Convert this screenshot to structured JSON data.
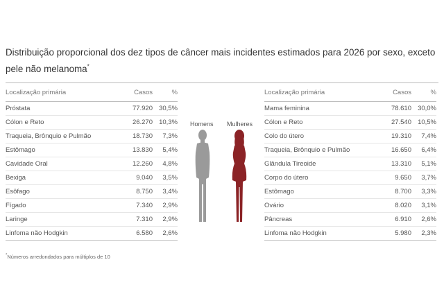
{
  "title": "Distribuição proporcional dos dez tipos de câncer mais incidentes estimados para 2026 por sexo, exceto pele não melanoma",
  "title_marker": "*",
  "headers": {
    "location": "Localização primária",
    "cases": "Casos",
    "pct": "%"
  },
  "figure_labels": {
    "men": "Homens",
    "women": "Mulheres"
  },
  "colors": {
    "men_figure": "#9a9a9a",
    "women_figure": "#8b2326"
  },
  "chart_data": [
    {
      "type": "table",
      "group": "Homens",
      "columns": [
        "Localização primária",
        "Casos",
        "%"
      ],
      "rows": [
        {
          "location": "Próstata",
          "cases": "77.920",
          "pct": "30,5%"
        },
        {
          "location": "Cólon e Reto",
          "cases": "26.270",
          "pct": "10,3%"
        },
        {
          "location": "Traqueia, Brônquio e Pulmão",
          "cases": "18.730",
          "pct": "7,3%"
        },
        {
          "location": "Estômago",
          "cases": "13.830",
          "pct": "5,4%"
        },
        {
          "location": "Cavidade Oral",
          "cases": "12.260",
          "pct": "4,8%"
        },
        {
          "location": "Bexiga",
          "cases": "9.040",
          "pct": "3,5%"
        },
        {
          "location": "Esôfago",
          "cases": "8.750",
          "pct": "3,4%"
        },
        {
          "location": "Fígado",
          "cases": "7.340",
          "pct": "2,9%"
        },
        {
          "location": "Laringe",
          "cases": "7.310",
          "pct": "2,9%"
        },
        {
          "location": "Linfoma não Hodgkin",
          "cases": "6.580",
          "pct": "2,6%"
        }
      ]
    },
    {
      "type": "table",
      "group": "Mulheres",
      "columns": [
        "Localização primária",
        "Casos",
        "%"
      ],
      "rows": [
        {
          "location": "Mama feminina",
          "cases": "78.610",
          "pct": "30,0%"
        },
        {
          "location": "Cólon e Reto",
          "cases": "27.540",
          "pct": "10,5%"
        },
        {
          "location": "Colo do útero",
          "cases": "19.310",
          "pct": "7,4%"
        },
        {
          "location": "Traqueia, Brônquio e Pulmão",
          "cases": "16.650",
          "pct": "6,4%"
        },
        {
          "location": "Glândula Tireoide",
          "cases": "13.310",
          "pct": "5,1%"
        },
        {
          "location": "Corpo do útero",
          "cases": "9.650",
          "pct": "3,7%"
        },
        {
          "location": "Estômago",
          "cases": "8.700",
          "pct": "3,3%"
        },
        {
          "location": "Ovário",
          "cases": "8.020",
          "pct": "3,1%"
        },
        {
          "location": "Pâncreas",
          "cases": "6.910",
          "pct": "2,6%"
        },
        {
          "location": "Linfoma não Hodgkin",
          "cases": "5.980",
          "pct": "2,3%"
        }
      ]
    }
  ],
  "footnote_marker": "*",
  "footnote": "Números arredondados para múltiplos de 10"
}
